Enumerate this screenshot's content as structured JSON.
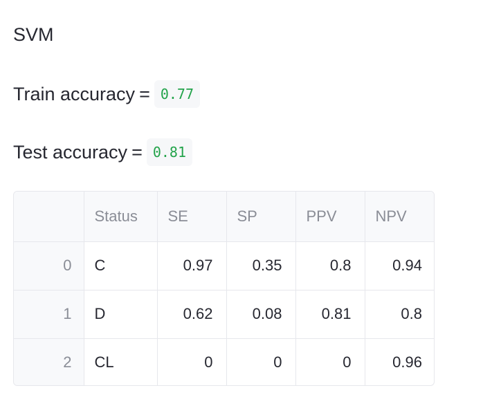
{
  "heading": "SVM",
  "train": {
    "label": "Train accuracy",
    "equals": "=",
    "value": "0.77"
  },
  "test": {
    "label": "Test accuracy",
    "equals": "=",
    "value": "0.81"
  },
  "colors": {
    "metric_value": "#22a34a",
    "badge_bg": "#f6f7f9",
    "table_border": "#e6e7ec",
    "header_text": "#8a8d96"
  },
  "table": {
    "columns": [
      "",
      "Status",
      "SE",
      "SP",
      "PPV",
      "NPV"
    ],
    "rows": [
      {
        "index": "0",
        "Status": "C",
        "SE": "0.97",
        "SP": "0.35",
        "PPV": "0.8",
        "NPV": "0.94"
      },
      {
        "index": "1",
        "Status": "D",
        "SE": "0.62",
        "SP": "0.08",
        "PPV": "0.81",
        "NPV": "0.8"
      },
      {
        "index": "2",
        "Status": "CL",
        "SE": "0",
        "SP": "0",
        "PPV": "0",
        "NPV": "0.96"
      }
    ]
  }
}
